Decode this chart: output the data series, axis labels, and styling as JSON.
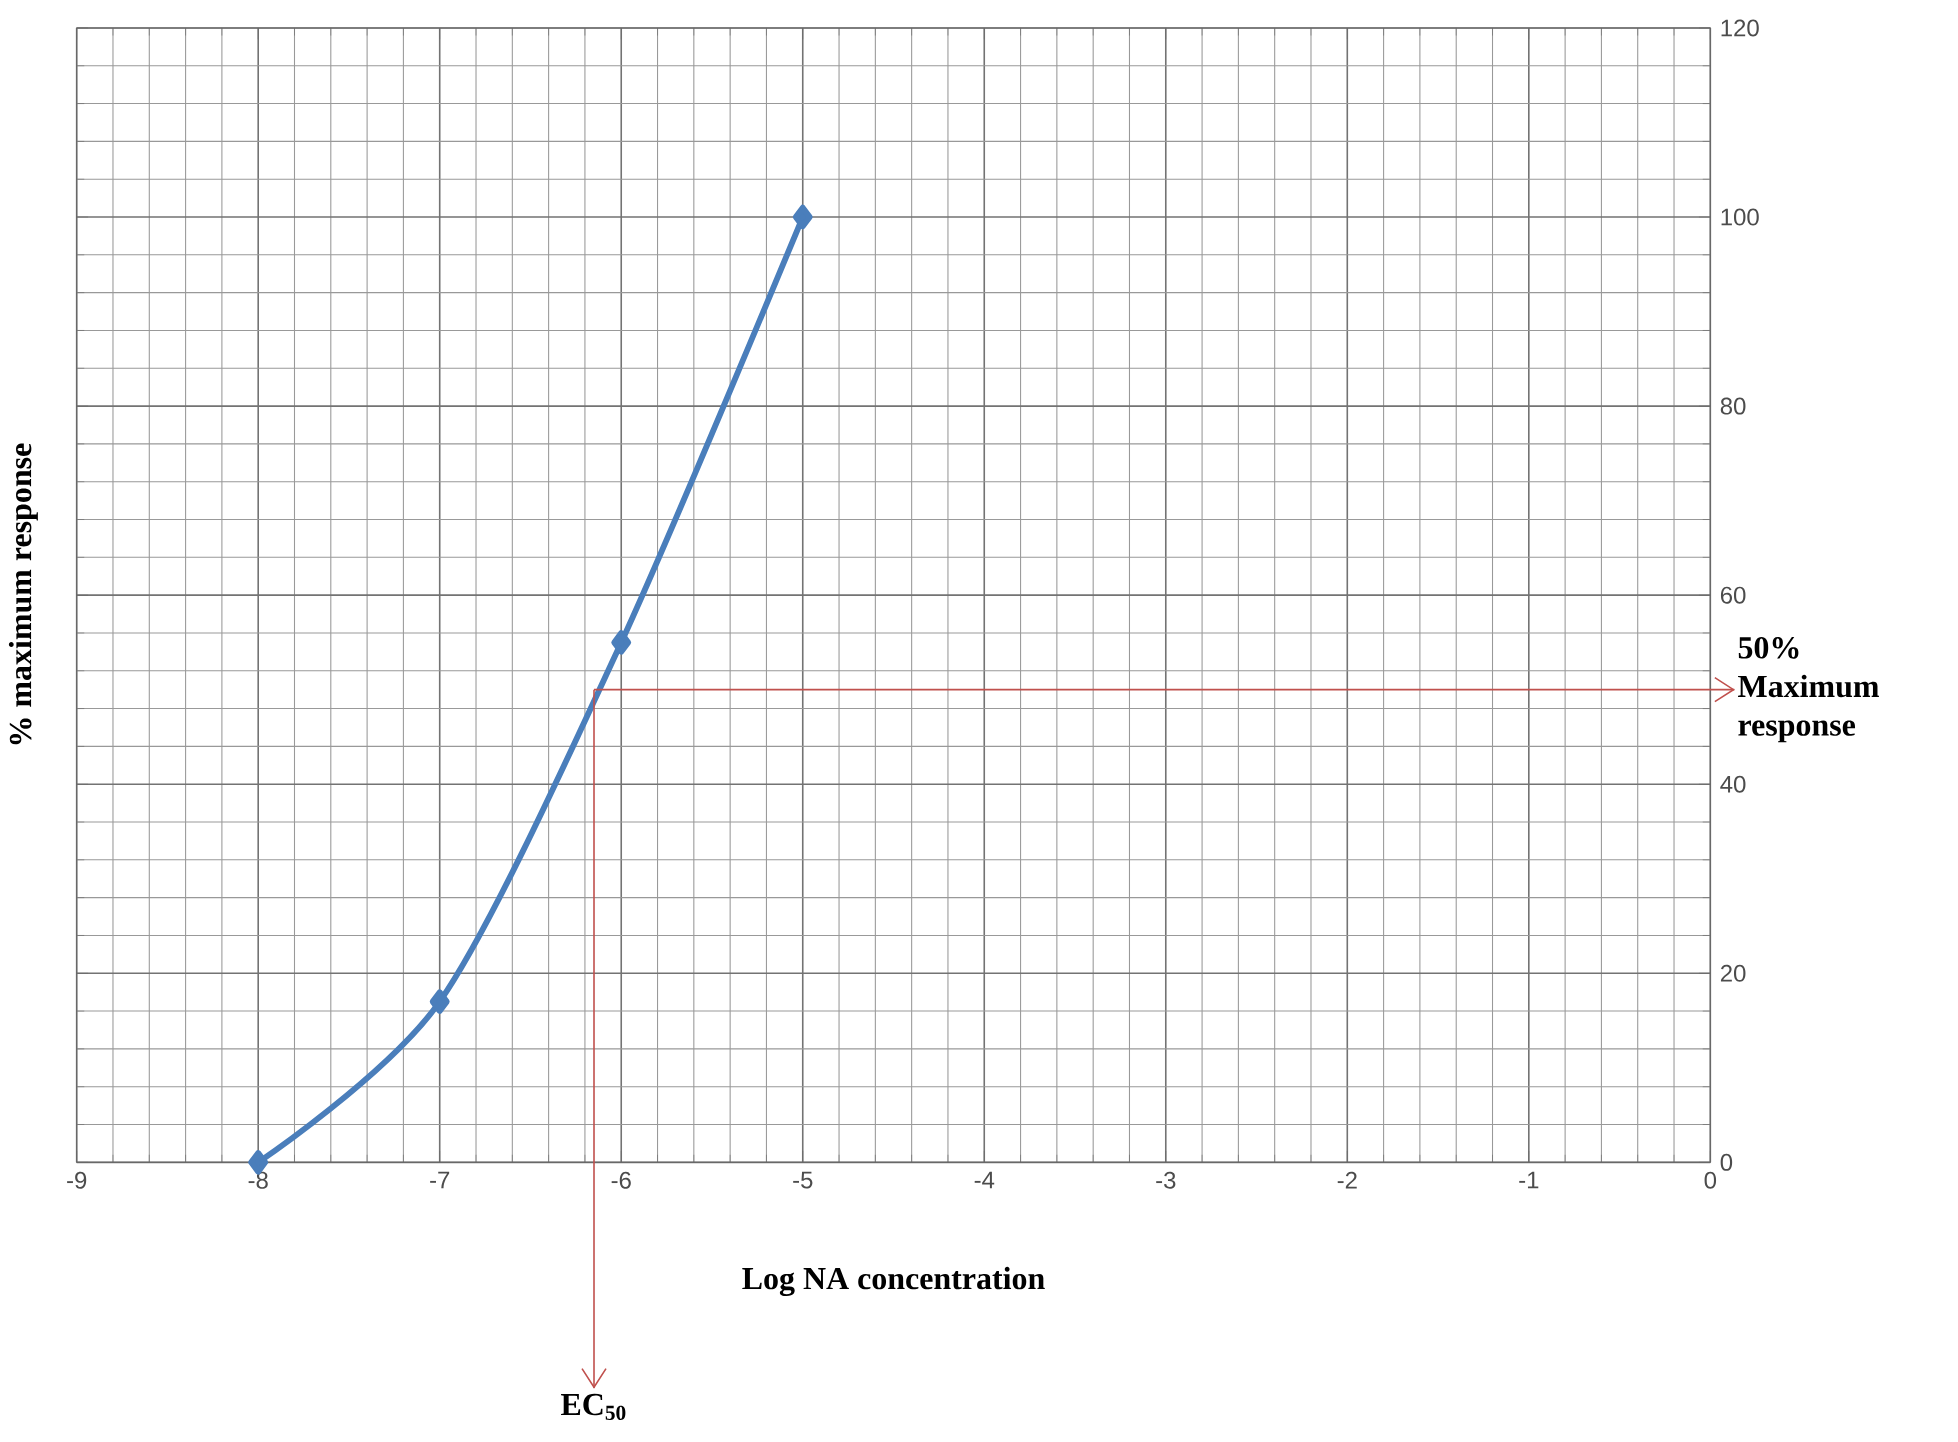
{
  "chart_data": {
    "type": "line",
    "xlabel": "Log NA concentration",
    "ylabel": "% maximum  response",
    "x": [
      -8,
      -7,
      -6,
      -5
    ],
    "series": [
      {
        "color": "#4a7ebb",
        "values": [
          0,
          17,
          55,
          100
        ]
      }
    ],
    "xlim": [
      -9,
      0
    ],
    "xticks": [
      -9,
      -8,
      -7,
      -6,
      -5,
      -4,
      -3,
      -2,
      -1,
      0
    ],
    "ylim": [
      0,
      120
    ],
    "yticks": [
      0,
      20,
      40,
      60,
      80,
      100,
      120
    ],
    "grid": true,
    "marker": "diamond",
    "line_style": "solid",
    "ref_lines": [
      {
        "axis": "y",
        "value": 50,
        "label": "50% Maximum response",
        "color": "#c0504d"
      },
      {
        "axis": "x",
        "value": -6.15,
        "label": "EC$_{50}$",
        "color": "#c0504d"
      }
    ]
  }
}
